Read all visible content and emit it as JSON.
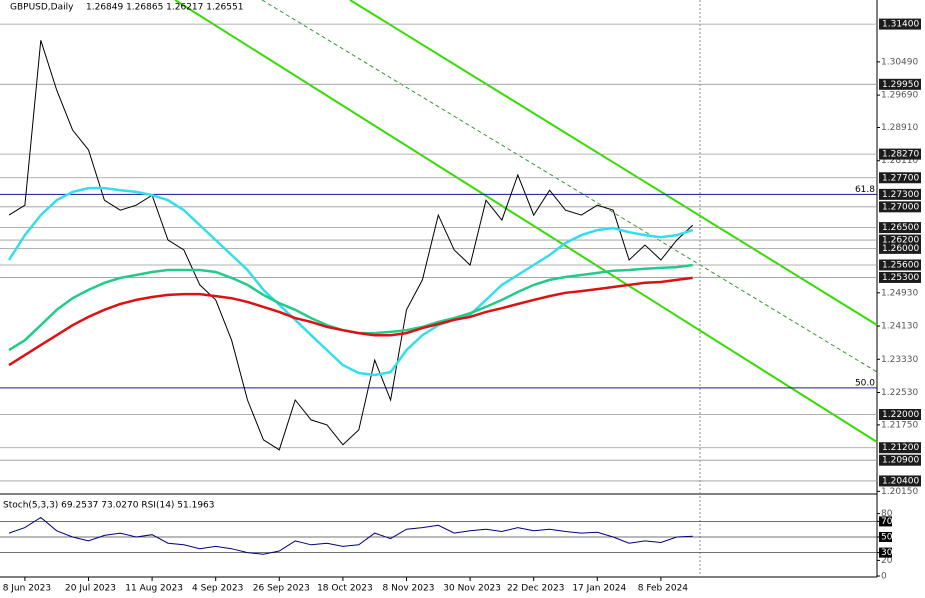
{
  "chart_data": [
    {
      "type": "line",
      "title": "GBPUSD,Daily",
      "ohlc_text": "1.26849 1.26865 1.26217 1.26551",
      "categories": [
        null,
        "8 Jun 2023",
        null,
        null,
        null,
        "20 Jul 2023",
        null,
        null,
        null,
        "11 Aug 2023",
        null,
        null,
        null,
        "4 Sep 2023",
        null,
        null,
        null,
        "26 Sep 2023",
        null,
        null,
        null,
        "18 Oct 2023",
        null,
        null,
        null,
        "8 Nov 2023",
        null,
        null,
        null,
        "30 Nov 2023",
        null,
        null,
        null,
        "22 Dec 2023",
        null,
        null,
        null,
        "17 Jan 2024",
        null,
        null,
        null,
        "8 Feb 2024",
        null,
        null
      ],
      "series": [
        {
          "color": "#000000",
          "values": [
            1.268,
            1.2704,
            1.3101,
            1.2981,
            1.2885,
            1.2837,
            1.2716,
            1.2692,
            1.2704,
            1.2728,
            1.262,
            1.2596,
            1.2512,
            1.2476,
            1.2379,
            1.2235,
            1.2139,
            1.2115,
            1.2235,
            1.2187,
            1.2175,
            1.2127,
            1.2163,
            1.2331,
            1.2235,
            1.2452,
            1.2524,
            1.268,
            1.2596,
            1.256,
            1.2716,
            1.2668,
            1.2777,
            1.268,
            1.274,
            1.2692,
            1.268,
            1.2704,
            1.2692,
            1.2572,
            1.2608,
            1.2572,
            1.262,
            1.2656
          ]
        },
        {
          "color": "#33ddee",
          "values": [
            1.2572,
            1.2632,
            1.268,
            1.2716,
            1.2736,
            1.2745,
            1.2745,
            1.274,
            1.2736,
            1.2728,
            1.2716,
            1.2692,
            1.2656,
            1.262,
            1.2584,
            1.2548,
            1.25,
            1.2464,
            1.2428,
            1.2391,
            1.2355,
            1.2319,
            1.23,
            1.2295,
            1.2302,
            1.2355,
            1.2391,
            1.2415,
            1.2428,
            1.244,
            1.2476,
            1.2512,
            1.2536,
            1.256,
            1.2584,
            1.2613,
            1.2632,
            1.2644,
            1.2649,
            1.2639,
            1.2632,
            1.2627,
            1.2632,
            1.2644
          ]
        },
        {
          "color": "#22cc88",
          "values": [
            1.2355,
            1.2379,
            1.2415,
            1.2452,
            1.248,
            1.25,
            1.2517,
            1.2529,
            1.2536,
            1.2543,
            1.2548,
            1.2548,
            1.2548,
            1.2543,
            1.2529,
            1.2512,
            1.2488,
            1.2468,
            1.2452,
            1.2432,
            1.2415,
            1.2403,
            1.2396,
            1.2396,
            1.2399,
            1.2403,
            1.2411,
            1.2423,
            1.2432,
            1.2444,
            1.2459,
            1.2476,
            1.2495,
            1.2512,
            1.2524,
            1.2531,
            1.2536,
            1.2541,
            1.2546,
            1.2548,
            1.2551,
            1.2553,
            1.2555,
            1.256
          ]
        },
        {
          "color": "#dd1111",
          "values": [
            1.2319,
            1.2343,
            1.2367,
            1.2391,
            1.2415,
            1.2435,
            1.2452,
            1.2466,
            1.2476,
            1.2483,
            1.2488,
            1.249,
            1.249,
            1.2485,
            1.248,
            1.2471,
            1.2459,
            1.2447,
            1.2432,
            1.2423,
            1.2411,
            1.2403,
            1.2396,
            1.2391,
            1.2391,
            1.2396,
            1.2408,
            1.2418,
            1.2428,
            1.2435,
            1.2447,
            1.2456,
            1.2466,
            1.2476,
            1.2485,
            1.2493,
            1.2497,
            1.2502,
            1.2507,
            1.2512,
            1.2517,
            1.2519,
            1.2524,
            1.2529
          ]
        }
      ],
      "ylim": [
        1.2011,
        1.3198
      ],
      "yticks": [
        {
          "value": 1.3049,
          "label": "1.30490"
        },
        {
          "value": 1.2969,
          "label": "1.29690"
        },
        {
          "value": 1.2891,
          "label": "1.28910"
        },
        {
          "value": 1.2811,
          "label": "1.28110"
        },
        {
          "value": 1.2493,
          "label": "1.24930"
        },
        {
          "value": 1.2413,
          "label": "1.24130"
        },
        {
          "value": 1.2333,
          "label": "1.23330"
        },
        {
          "value": 1.2253,
          "label": "1.22530"
        },
        {
          "value": 1.2175,
          "label": "1.21750"
        },
        {
          "value": 1.2015,
          "label": "1.20150"
        }
      ],
      "levels": [
        {
          "value": 1.314,
          "label": "1.31400"
        },
        {
          "value": 1.2995,
          "label": "1.29950"
        },
        {
          "value": 1.2827,
          "label": "1.28270"
        },
        {
          "value": 1.277,
          "label": "1.27700"
        },
        {
          "value": 1.273,
          "label": "1.27300"
        },
        {
          "value": 1.27,
          "label": "1.27000"
        },
        {
          "value": 1.265,
          "label": "1.26500"
        },
        {
          "value": 1.262,
          "label": "1.26200"
        },
        {
          "value": 1.26,
          "label": "1.26000"
        },
        {
          "value": 1.256,
          "label": "1.25600"
        },
        {
          "value": 1.253,
          "label": "1.25300"
        },
        {
          "value": 1.22,
          "label": "1.22000"
        },
        {
          "value": 1.212,
          "label": "1.21200"
        },
        {
          "value": 1.209,
          "label": "1.20900"
        },
        {
          "value": 1.204,
          "label": "1.20400"
        }
      ],
      "fib_levels": [
        {
          "value": 1.273,
          "label": "61.8"
        },
        {
          "value": 1.2264,
          "label": "50.0"
        }
      ]
    },
    {
      "type": "line",
      "title": "Stoch(5,3,3) 69.2537 73.0270 RSI(14) 51.1963",
      "ylim": [
        0,
        100
      ],
      "yticks": [
        0,
        20,
        30,
        50,
        70,
        80
      ],
      "series": [
        {
          "color": "#000080",
          "values": [
            55,
            62,
            75,
            58,
            50,
            45,
            52,
            55,
            50,
            53,
            42,
            40,
            35,
            38,
            35,
            30,
            28,
            32,
            45,
            40,
            42,
            38,
            40,
            55,
            48,
            60,
            62,
            65,
            55,
            58,
            60,
            57,
            62,
            58,
            60,
            57,
            55,
            56,
            50,
            42,
            45,
            43,
            50,
            51
          ]
        }
      ]
    }
  ]
}
